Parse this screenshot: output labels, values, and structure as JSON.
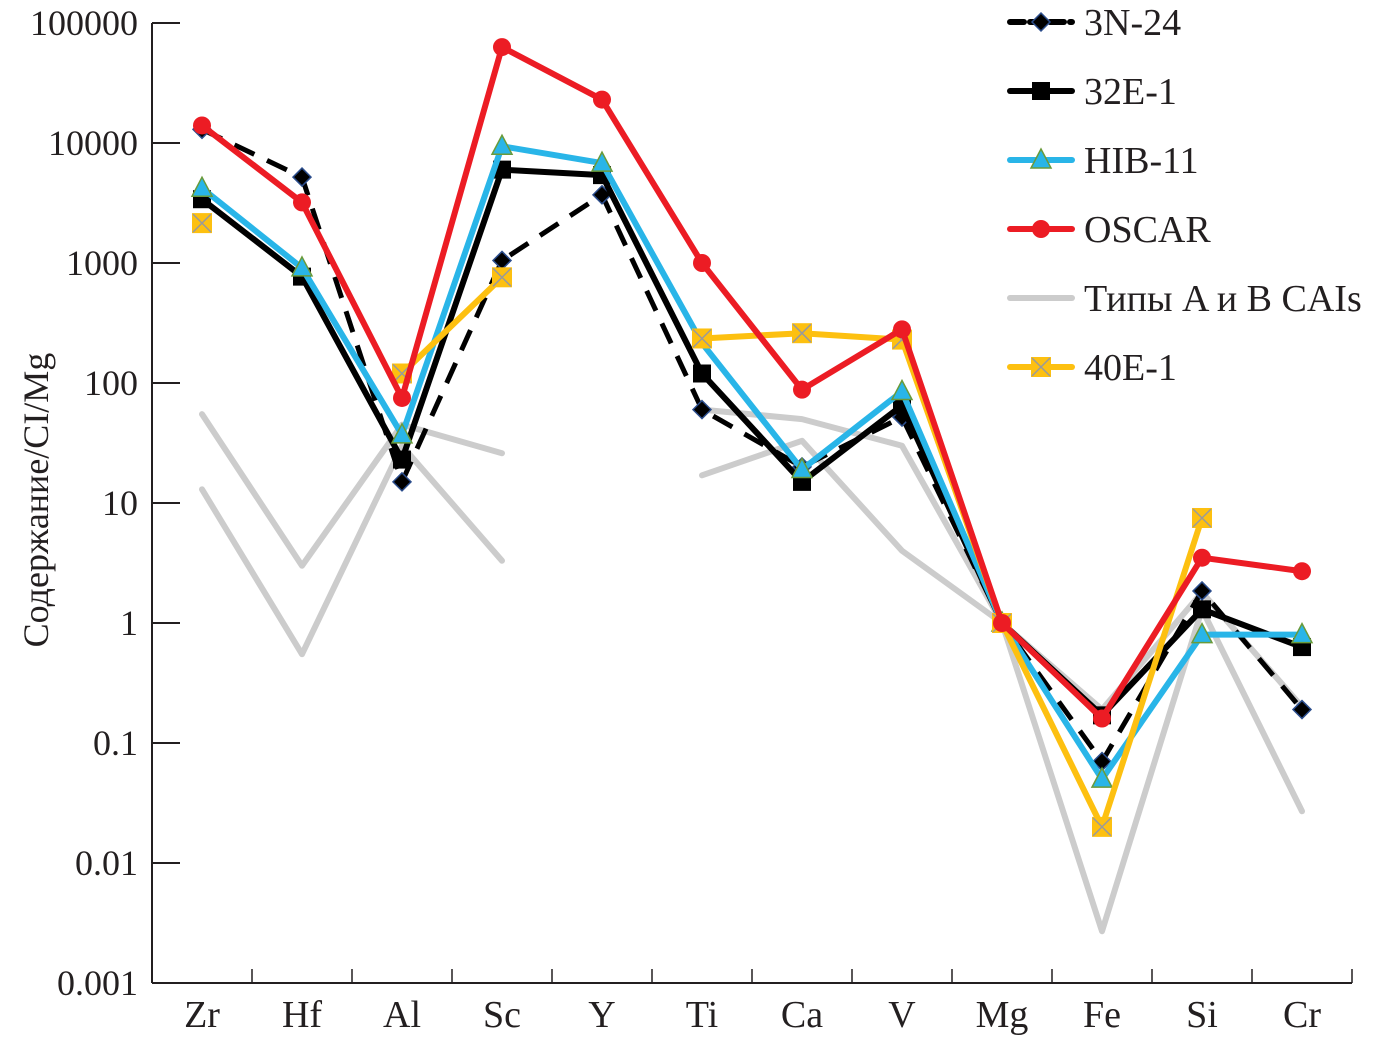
{
  "chart_data": {
    "type": "line",
    "title": "",
    "xlabel": "",
    "ylabel": "Содержание/CI/Mg",
    "yscale": "log",
    "ylim": [
      0.001,
      100000
    ],
    "yticks": [
      {
        "value": 100000,
        "label": "100000"
      },
      {
        "value": 10000,
        "label": "10000"
      },
      {
        "value": 1000,
        "label": "1000"
      },
      {
        "value": 100,
        "label": "100"
      },
      {
        "value": 10,
        "label": "10"
      },
      {
        "value": 1,
        "label": "1"
      },
      {
        "value": 0.1,
        "label": "0.1"
      },
      {
        "value": 0.01,
        "label": "0.01"
      },
      {
        "value": 0.001,
        "label": "0.001"
      }
    ],
    "categories": [
      "Zr",
      "Hf",
      "Al",
      "Sc",
      "Y",
      "Ti",
      "Ca",
      "V",
      "Mg",
      "Fe",
      "Si",
      "Cr"
    ],
    "grid": false,
    "legend_position": "top-right",
    "series": [
      {
        "name": "3N-24",
        "color": "#000000",
        "marker": "diamond",
        "marker_color": "#0a1a33",
        "dashed": true,
        "values": [
          13000,
          5200,
          15,
          1050,
          3700,
          60,
          20,
          52,
          1,
          0.07,
          1.85,
          0.19
        ]
      },
      {
        "name": "32E-1",
        "color": "#000000",
        "marker": "square",
        "marker_color": "#000000",
        "dashed": false,
        "values": [
          3400,
          770,
          23,
          6000,
          5400,
          120,
          15,
          65,
          1,
          0.17,
          1.3,
          0.63
        ]
      },
      {
        "name": "HIB-11",
        "color": "#29b5e8",
        "marker": "triangle",
        "marker_color": "#29b5e8",
        "dashed": false,
        "values": [
          4200,
          910,
          37,
          9400,
          6800,
          215,
          19,
          85,
          1,
          0.05,
          0.8,
          0.8
        ],
        "no_marker_at": [
          "Ti"
        ]
      },
      {
        "name": "OSCAR",
        "color": "#ec1c24",
        "marker": "circle",
        "marker_color": "#ec1c24",
        "dashed": false,
        "values": [
          14000,
          3200,
          75,
          63000,
          23000,
          1000,
          88,
          280,
          1,
          0.16,
          3.5,
          2.7
        ]
      },
      {
        "name": "Типы A и B CAIs",
        "color": "#cccccc",
        "marker": "none",
        "dashed": false,
        "lines": [
          {
            "values": [
              55,
              3,
              45,
              26,
              null,
              17,
              33,
              4,
              1,
              0.19,
              1.8,
              0.2
            ]
          },
          {
            "values": [
              13,
              0.55,
              30,
              3.3,
              null,
              60,
              50,
              30,
              1,
              0.0027,
              1.3,
              0.027
            ]
          }
        ]
      },
      {
        "name": "40E-1",
        "color": "#fdc010",
        "marker": "square-x",
        "marker_color": "#fdc010",
        "dashed": false,
        "values": [
          2150,
          null,
          120,
          760,
          null,
          235,
          260,
          230,
          1,
          0.02,
          7.5,
          null
        ]
      }
    ]
  }
}
